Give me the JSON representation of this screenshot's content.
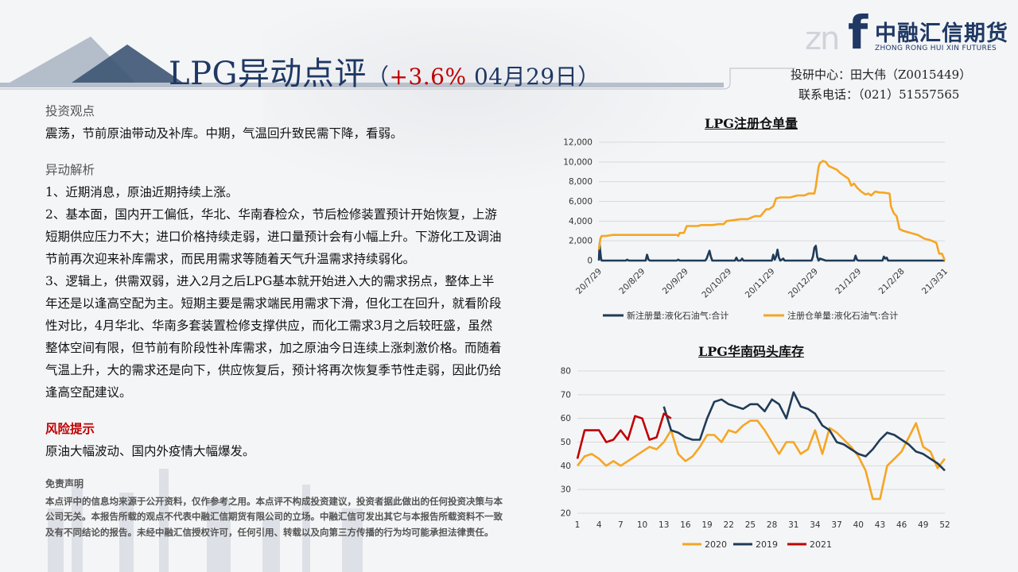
{
  "header": {
    "title_main": "LPG异动点评",
    "title_paren_open": "（",
    "title_pct": "+3.6%",
    "title_date": " 04月29日",
    "title_paren_close": "）",
    "contact_line1": "投研中心：田大伟（Z0015449）",
    "contact_line2": "联系电话：（021）51557565"
  },
  "logo": {
    "mark": "f",
    "ghost": "zn",
    "name_cn": "中融汇信期货",
    "name_en": "ZHONG RONG HUI XIN FUTURES"
  },
  "left": {
    "view_heading": "投资观点",
    "view_text": "震荡，节前原油带动及补库。中期，气温回升致民需下降，看弱。",
    "analysis_heading": "异动解析",
    "points": [
      "1、近期消息，原油近期持续上涨。",
      "2、基本面，国内开工偏低，华北、华南春检众，节后检修装置预计开始恢复，上游短期供应压力不大；进口价格持续走弱，进口量预计会有小幅上升。下游化工及调油节前再次迎来补库需求，而民用需求等随着天气升温需求持续弱化。",
      "3、逻辑上，供需双弱，进入2月之后LPG基本就开始进入大的需求拐点，整体上半年还是以逢高空配为主。短期主要是需求端民用需求下滑，但化工在回升，就看阶段性对比，4月华北、华南多套装置检修支撑供应，而化工需求3月之后较旺盛，虽然整体空间有限，但节前有阶段性补库需求，加之原油今日连续上涨刺激价格。而随着气温上升，大的需求还是向下，供应恢复后，预计将再次恢复季节性走弱，因此仍给逢高空配建议。"
    ],
    "risk_heading": "风险提示",
    "risk_text": "原油大幅波动、国内外疫情大幅爆发。"
  },
  "disclaimer": {
    "heading": "免责声明",
    "text": "本点评中的信息均来源于公开资料，仅作参考之用。本点评不构成投资建议，投资者据此做出的任何投资决策与本公司无关。本报告所载的观点不代表中融汇信期货有限公司的立场。中融汇信可发出其它与本报告所载资料不一致及有不同结论的报告。未经中融汇信授权许可，任何引用、转载以及向第三方传播的行为均可能承担法律责任。"
  },
  "chart_data": [
    {
      "type": "line",
      "title": "LPG注册仓单量",
      "y_ticks": [
        "0",
        "2,000",
        "4,000",
        "6,000",
        "8,000",
        "10,000",
        "12,000"
      ],
      "ylim": [
        0,
        12000
      ],
      "x_ticks": [
        "20/7/29",
        "20/8/29",
        "20/9/29",
        "20/10/29",
        "20/11/29",
        "20/12/29",
        "21/1/29",
        "21/2/28",
        "21/3/31"
      ],
      "series": [
        {
          "name": "新注册量:液化石油气:合计",
          "color": "#1f3b57",
          "x": [
            0,
            0.5,
            1,
            1.5,
            2,
            3,
            10,
            19,
            20,
            21,
            30,
            33,
            34,
            35,
            36,
            37,
            40,
            50,
            55,
            56,
            57,
            60,
            65,
            70,
            75,
            76,
            77,
            78,
            79,
            80,
            85,
            90,
            96,
            97,
            98,
            99,
            100,
            101,
            102,
            103,
            104,
            105,
            106,
            107,
            108,
            109,
            110,
            120,
            122,
            123,
            124,
            125,
            126,
            127,
            128,
            129,
            130,
            131,
            132,
            140,
            150,
            151,
            152,
            153,
            154,
            155,
            156,
            160,
            170,
            180,
            181,
            182,
            183,
            190,
            200,
            201,
            202,
            203,
            204,
            205,
            210,
            215,
            216,
            220,
            225,
            230,
            240,
            244
          ],
          "y": [
            0,
            1700,
            900,
            200,
            0,
            0,
            0,
            0,
            100,
            0,
            0,
            0,
            600,
            100,
            0,
            0,
            0,
            0,
            0,
            100,
            0,
            0,
            0,
            0,
            0,
            200,
            600,
            1000,
            400,
            0,
            0,
            0,
            0,
            300,
            0,
            0,
            0,
            200,
            0,
            0,
            0,
            0,
            0,
            0,
            0,
            0,
            0,
            0,
            0,
            600,
            100,
            400,
            1100,
            300,
            0,
            100,
            200,
            0,
            0,
            0,
            0,
            400,
            1300,
            1500,
            400,
            0,
            200,
            0,
            0,
            0,
            500,
            100,
            0,
            0,
            0,
            400,
            200,
            300,
            0,
            0,
            0,
            0,
            0,
            0,
            0,
            0,
            0,
            0
          ]
        },
        {
          "name": "注册仓单量:液化石油气:合计",
          "color": "#f5a623",
          "x": [
            0,
            1,
            2,
            5,
            10,
            15,
            20,
            25,
            30,
            40,
            50,
            55,
            56,
            57,
            60,
            62,
            68,
            70,
            72,
            75,
            80,
            85,
            88,
            90,
            95,
            100,
            105,
            110,
            112,
            114,
            118,
            120,
            123,
            125,
            128,
            130,
            135,
            140,
            145,
            148,
            150,
            152,
            153,
            154,
            155,
            156,
            158,
            160,
            162,
            165,
            168,
            170,
            172,
            174,
            176,
            178,
            180,
            182,
            185,
            188,
            190,
            192,
            195,
            198,
            200,
            205,
            206,
            208,
            210,
            212,
            215,
            220,
            225,
            230,
            233,
            235,
            238,
            240,
            242,
            244
          ],
          "y": [
            1100,
            2200,
            2500,
            2500,
            2600,
            2600,
            2600,
            2600,
            2600,
            2600,
            2600,
            2600,
            2500,
            2800,
            2800,
            3500,
            3500,
            3500,
            3600,
            3600,
            3600,
            3700,
            3700,
            4000,
            4100,
            4200,
            4200,
            4500,
            4500,
            4500,
            5200,
            5200,
            5500,
            6300,
            6400,
            6400,
            6400,
            6600,
            6600,
            6800,
            6800,
            6800,
            7500,
            8500,
            9500,
            9900,
            10100,
            10000,
            9600,
            9400,
            9200,
            8900,
            8700,
            8500,
            8300,
            7600,
            7800,
            7400,
            7000,
            6700,
            6800,
            6600,
            7000,
            6900,
            6900,
            6800,
            5500,
            4800,
            4500,
            3200,
            3000,
            2800,
            2600,
            2200,
            2100,
            2000,
            1800,
            700,
            700,
            0
          ]
        }
      ],
      "x_max": 244
    },
    {
      "type": "line",
      "title": "LPG华南码头库存",
      "ylim": [
        20,
        80
      ],
      "y_ticks": [
        "20",
        "30",
        "40",
        "50",
        "60",
        "70",
        "80"
      ],
      "x_ticks": [
        "1",
        "4",
        "7",
        "10",
        "13",
        "16",
        "19",
        "22",
        "25",
        "28",
        "31",
        "34",
        "37",
        "40",
        "43",
        "46",
        "49",
        "52"
      ],
      "x_max": 52,
      "series": [
        {
          "name": "2020",
          "color": "#f5a623",
          "x": [
            1,
            2,
            3,
            4,
            5,
            6,
            7,
            8,
            9,
            10,
            11,
            12,
            13,
            14,
            15,
            16,
            17,
            18,
            19,
            20,
            21,
            22,
            23,
            24,
            25,
            26,
            27,
            28,
            29,
            30,
            31,
            32,
            33,
            34,
            35,
            36,
            37,
            38,
            39,
            40,
            41,
            42,
            43,
            44,
            45,
            46,
            47,
            48,
            49,
            50,
            51,
            52
          ],
          "y": [
            40,
            44,
            45,
            43,
            40,
            42,
            40,
            42,
            44,
            46,
            48,
            47,
            50,
            55,
            45,
            42,
            44,
            48,
            53,
            53,
            50,
            55,
            54,
            57,
            59,
            59,
            55,
            50,
            45,
            50,
            50,
            45,
            47,
            55,
            45,
            56,
            54,
            51,
            48,
            44,
            38,
            26,
            26,
            40,
            43,
            46,
            52,
            58,
            48,
            46,
            39,
            43
          ]
        },
        {
          "name": "2019",
          "color": "#1f3b57",
          "x": [
            13,
            14,
            15,
            16,
            17,
            18,
            19,
            20,
            21,
            22,
            23,
            24,
            25,
            26,
            27,
            28,
            29,
            30,
            31,
            32,
            33,
            34,
            35,
            36,
            37,
            38,
            39,
            40,
            41,
            42,
            43,
            44,
            45,
            46,
            47,
            48,
            49,
            50,
            51,
            52
          ],
          "y": [
            65,
            55,
            54,
            52,
            51,
            51,
            60,
            67,
            68,
            66,
            65,
            64,
            66,
            66,
            63,
            68,
            66,
            60,
            71,
            65,
            64,
            62,
            57,
            55,
            50,
            49,
            47,
            45,
            44,
            47,
            51,
            54,
            53,
            51,
            49,
            46,
            45,
            43,
            41,
            38
          ]
        },
        {
          "name": "2021",
          "color": "#c00000",
          "x": [
            1,
            2,
            3,
            4,
            5,
            6,
            7,
            8,
            9,
            10,
            11,
            12,
            13,
            14
          ],
          "y": [
            43,
            55,
            55,
            55,
            50,
            51,
            55,
            51,
            61,
            60,
            51,
            52,
            62,
            60
          ]
        }
      ]
    }
  ]
}
